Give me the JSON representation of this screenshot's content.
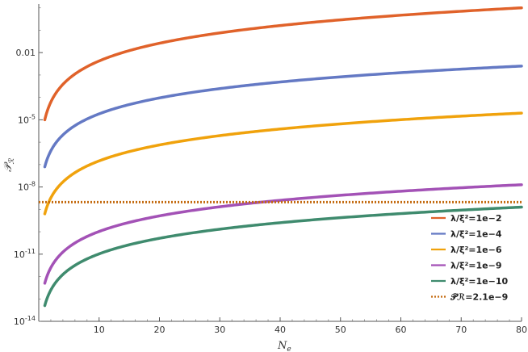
{
  "chart_data": {
    "type": "line",
    "xlabel": "N",
    "xlabel_sub": "e",
    "ylabel": "𝒫",
    "ylabel_sub": "ℛ",
    "x_range": [
      0,
      80
    ],
    "y_scale": "log",
    "y_range_log10": [
      -14,
      0.17
    ],
    "x_ticks": [
      10,
      20,
      30,
      40,
      50,
      60,
      70,
      80
    ],
    "y_ticks": [
      {
        "log10": -2,
        "label": "0.01"
      },
      {
        "log10": -5,
        "label": "10"
      },
      {
        "log10": -8,
        "label": "10"
      },
      {
        "log10": -11,
        "label": "10"
      },
      {
        "log10": -14,
        "label": "10"
      }
    ],
    "y_tick_exponents": [
      "",
      "-5",
      "-8",
      "-11",
      "-14"
    ],
    "grid": false,
    "legend_position": "bottom-right",
    "series": [
      {
        "name": "λ/ξ²=1e−2",
        "color": "#e0622a",
        "style": "solid",
        "y_at_1": -5.0,
        "y_at_80": 0.0
      },
      {
        "name": "λ/ξ²=1e−4",
        "color": "#6479c4",
        "style": "solid",
        "y_at_1": -7.1,
        "y_at_80": -2.6
      },
      {
        "name": "λ/ξ²=1e−6",
        "color": "#f0a20c",
        "style": "solid",
        "y_at_1": -9.2,
        "y_at_80": -4.7
      },
      {
        "name": "λ/ξ²=1e−9",
        "color": "#a352b6",
        "style": "solid",
        "y_at_1": -12.3,
        "y_at_80": -7.9
      },
      {
        "name": "λ/ξ²=1e−10",
        "color": "#3f8b6e",
        "style": "solid",
        "y_at_1": -13.3,
        "y_at_80": -8.9
      },
      {
        "name": "𝒫ℛ=2.1e−9",
        "color": "#c46b10",
        "style": "dotted",
        "constant": 2.1e-09
      }
    ]
  }
}
